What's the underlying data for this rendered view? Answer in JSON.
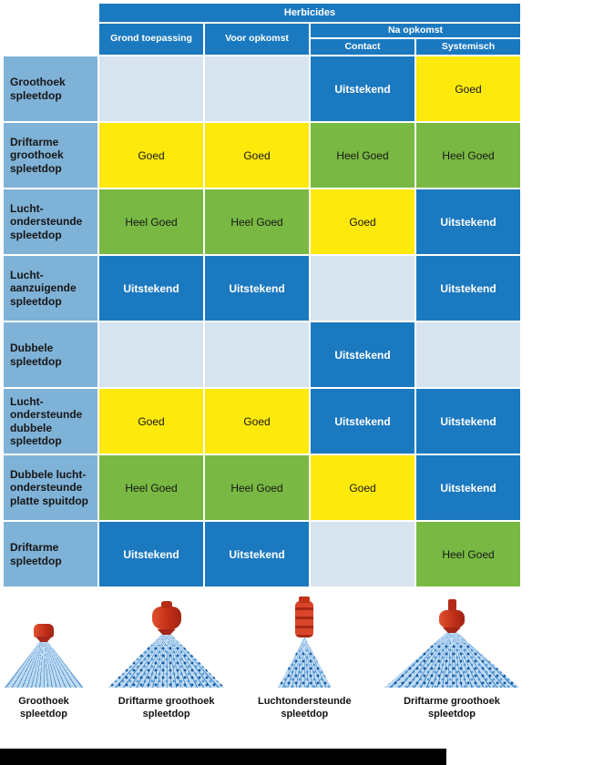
{
  "colors": {
    "header_blue": "#1b79c0",
    "row_label_blue": "#7fb2d7",
    "empty_cell_blue": "#d7e4ef",
    "good_yellow": "#fde90b",
    "very_good_green": "#79b943",
    "excellent_blue": "#1b79c0",
    "nozzle_red": "#c22f18",
    "spray_blue": "#1568ba",
    "bottom_bar_black": "#000000"
  },
  "table": {
    "header": {
      "herbicides": "Herbicides",
      "grond_toepassing": "Grond toepassing",
      "voor_opkomst": "Voor opkomst",
      "na_opkomst": "Na opkomst",
      "contact": "Contact",
      "systemisch": "Systemisch"
    },
    "rows": [
      {
        "label": "Groothoek spleetdop",
        "cells": [
          {
            "t": "",
            "r": "none"
          },
          {
            "t": "",
            "r": "none"
          },
          {
            "t": "Uitstekend",
            "r": "excellent"
          },
          {
            "t": "Goed",
            "r": "good"
          }
        ]
      },
      {
        "label": "Driftarme groothoek spleetdop",
        "cells": [
          {
            "t": "Goed",
            "r": "good"
          },
          {
            "t": "Goed",
            "r": "good"
          },
          {
            "t": "Heel Goed",
            "r": "verygood"
          },
          {
            "t": "Heel Goed",
            "r": "verygood"
          }
        ]
      },
      {
        "label": "Lucht-ondersteunde spleetdop",
        "cells": [
          {
            "t": "Heel Goed",
            "r": "verygood"
          },
          {
            "t": "Heel Goed",
            "r": "verygood"
          },
          {
            "t": "Goed",
            "r": "good"
          },
          {
            "t": "Uitstekend",
            "r": "excellent"
          }
        ]
      },
      {
        "label": "Lucht-aanzuigende spleetdop",
        "cells": [
          {
            "t": "Uitstekend",
            "r": "excellent"
          },
          {
            "t": "Uitstekend",
            "r": "excellent"
          },
          {
            "t": "",
            "r": "none"
          },
          {
            "t": "Uitstekend",
            "r": "excellent"
          }
        ]
      },
      {
        "label": "Dubbele spleetdop",
        "cells": [
          {
            "t": "",
            "r": "none"
          },
          {
            "t": "",
            "r": "none"
          },
          {
            "t": "Uitstekend",
            "r": "excellent"
          },
          {
            "t": "",
            "r": "none"
          }
        ]
      },
      {
        "label": "Lucht-ondersteunde dubbele spleetdop",
        "cells": [
          {
            "t": "Goed",
            "r": "good"
          },
          {
            "t": "Goed",
            "r": "good"
          },
          {
            "t": "Uitstekend",
            "r": "excellent"
          },
          {
            "t": "Uitstekend",
            "r": "excellent"
          }
        ]
      },
      {
        "label": "Dubbele lucht-ondersteunde platte spuitdop",
        "cells": [
          {
            "t": "Heel Goed",
            "r": "verygood"
          },
          {
            "t": "Heel Goed",
            "r": "verygood"
          },
          {
            "t": "Goed",
            "r": "good"
          },
          {
            "t": "Uitstekend",
            "r": "excellent"
          }
        ]
      },
      {
        "label": "Driftarme spleetdop",
        "cells": [
          {
            "t": "Uitstekend",
            "r": "excellent"
          },
          {
            "t": "Uitstekend",
            "r": "excellent"
          },
          {
            "t": "",
            "r": "none"
          },
          {
            "t": "Heel Goed",
            "r": "verygood"
          }
        ]
      }
    ]
  },
  "nozzles": [
    {
      "label": "Groothoek spleetdop"
    },
    {
      "label": "Driftarme groothoek spleetdop"
    },
    {
      "label": "Luchtondersteunde spleetdop"
    },
    {
      "label": "Driftarme groothoek spleetdop"
    }
  ],
  "chart_data": {
    "type": "table",
    "title": "Herbicides",
    "columns": [
      "Grond toepassing",
      "Voor opkomst",
      "Na opkomst - Contact",
      "Na opkomst - Systemisch"
    ],
    "rows": [
      "Groothoek spleetdop",
      "Driftarme groothoek spleetdop",
      "Lucht-ondersteunde spleetdop",
      "Lucht-aanzuigende spleetdop",
      "Dubbele spleetdop",
      "Lucht-ondersteunde dubbele spleetdop",
      "Dubbele lucht-ondersteunde platte spuitdop",
      "Driftarme spleetdop"
    ],
    "values": [
      [
        "",
        "",
        "Uitstekend",
        "Goed"
      ],
      [
        "Goed",
        "Goed",
        "Heel Goed",
        "Heel Goed"
      ],
      [
        "Heel Goed",
        "Heel Goed",
        "Goed",
        "Uitstekend"
      ],
      [
        "Uitstekend",
        "Uitstekend",
        "",
        "Uitstekend"
      ],
      [
        "",
        "",
        "Uitstekend",
        ""
      ],
      [
        "Goed",
        "Goed",
        "Uitstekend",
        "Uitstekend"
      ],
      [
        "Heel Goed",
        "Heel Goed",
        "Goed",
        "Uitstekend"
      ],
      [
        "Uitstekend",
        "Uitstekend",
        "",
        "Heel Goed"
      ]
    ],
    "rating_scale": [
      "Goed",
      "Heel Goed",
      "Uitstekend"
    ]
  }
}
